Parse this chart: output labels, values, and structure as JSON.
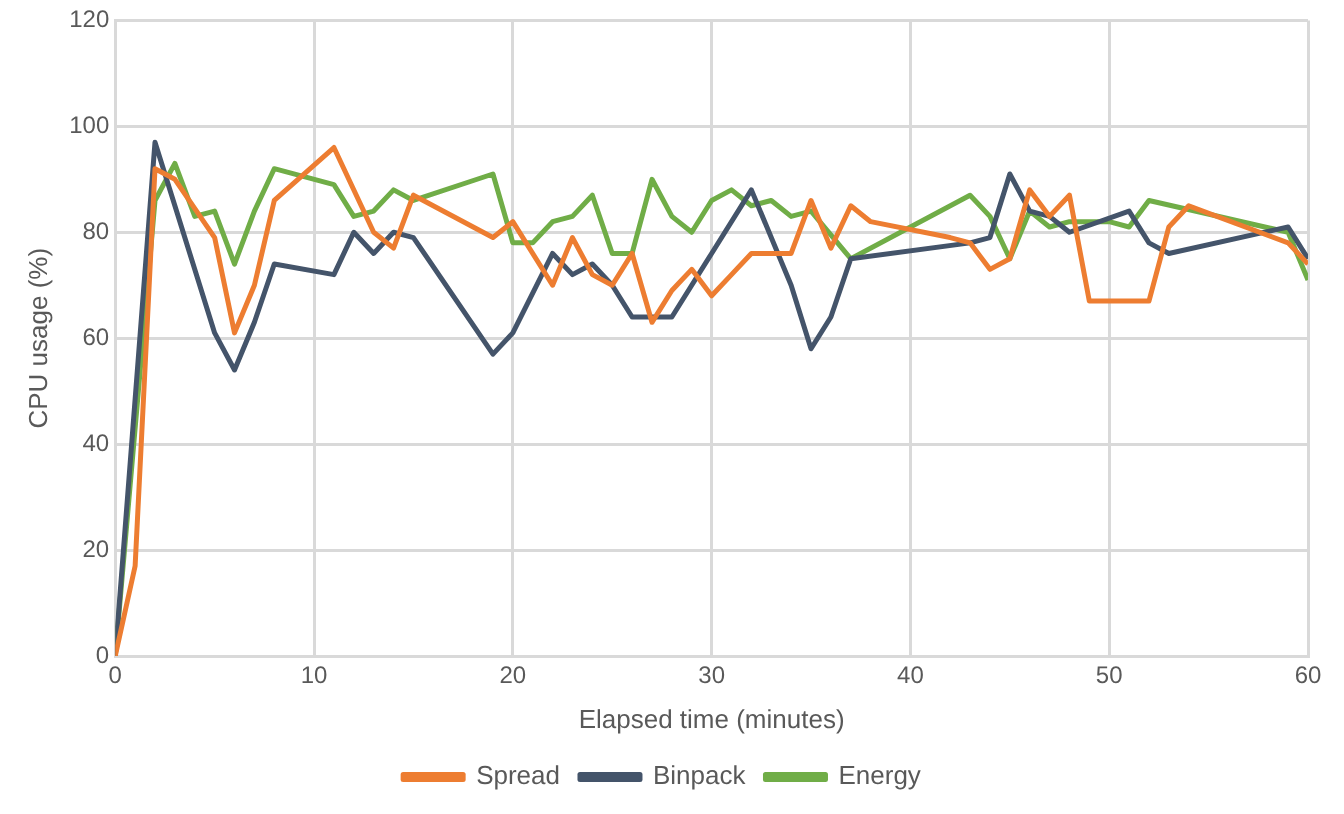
{
  "chart_data": {
    "type": "line",
    "xlabel": "Elapsed time (minutes)",
    "ylabel": "CPU usage (%)",
    "xlim": [
      0,
      60
    ],
    "xticks": [
      0,
      10,
      20,
      30,
      40,
      50,
      60
    ],
    "ylim": [
      0,
      120
    ],
    "yticks": [
      0,
      20,
      40,
      60,
      80,
      100,
      120
    ],
    "grid": true,
    "legend": "bottom",
    "marker": "none",
    "line_style": "solid",
    "series": [
      {
        "name": "Spread",
        "color": "#ed7d31",
        "x": [
          0,
          1,
          2,
          3,
          5,
          6,
          7,
          8,
          11,
          13,
          14,
          15,
          19,
          20,
          22,
          23,
          24,
          25,
          26,
          27,
          28,
          29,
          30,
          31,
          32,
          34,
          35,
          36,
          37,
          38,
          42,
          43,
          44,
          45,
          46,
          47,
          48,
          49,
          52,
          53,
          54,
          59,
          60
        ],
        "values": [
          0,
          17,
          92,
          90,
          79,
          61,
          70,
          86,
          96,
          80,
          77,
          87,
          79,
          82,
          70,
          79,
          72,
          70,
          76,
          63,
          69,
          73,
          68,
          72,
          76,
          76,
          86,
          77,
          85,
          82,
          79,
          78,
          73,
          75,
          88,
          83,
          87,
          67,
          67,
          81,
          85,
          78,
          74
        ]
      },
      {
        "name": "Binpack",
        "color": "#44546a",
        "x": [
          0,
          2,
          3,
          5,
          6,
          7,
          8,
          11,
          12,
          13,
          14,
          15,
          19,
          20,
          22,
          23,
          24,
          25,
          26,
          28,
          30,
          32,
          34,
          35,
          36,
          37,
          43,
          44,
          45,
          46,
          47,
          48,
          51,
          52,
          53,
          59,
          60
        ],
        "values": [
          0,
          97,
          85,
          61,
          54,
          63,
          74,
          72,
          80,
          76,
          80,
          79,
          57,
          61,
          76,
          72,
          74,
          70,
          64,
          64,
          76,
          88,
          70,
          58,
          64,
          75,
          78,
          79,
          91,
          84,
          83,
          80,
          84,
          78,
          76,
          81,
          75
        ]
      },
      {
        "name": "Energy",
        "color": "#70ad47",
        "x": [
          0,
          2,
          3,
          4,
          5,
          6,
          7,
          8,
          11,
          12,
          13,
          14,
          15,
          19,
          20,
          21,
          22,
          23,
          24,
          25,
          26,
          27,
          28,
          29,
          30,
          31,
          32,
          33,
          34,
          35,
          37,
          43,
          44,
          45,
          46,
          47,
          48,
          50,
          51,
          52,
          59,
          60
        ],
        "values": [
          0,
          86,
          93,
          83,
          84,
          74,
          84,
          92,
          89,
          83,
          84,
          88,
          86,
          91,
          78,
          78,
          82,
          83,
          87,
          76,
          76,
          90,
          83,
          80,
          86,
          88,
          85,
          86,
          83,
          84,
          75,
          87,
          83,
          75,
          84,
          81,
          82,
          82,
          81,
          86,
          80,
          71
        ]
      }
    ]
  }
}
